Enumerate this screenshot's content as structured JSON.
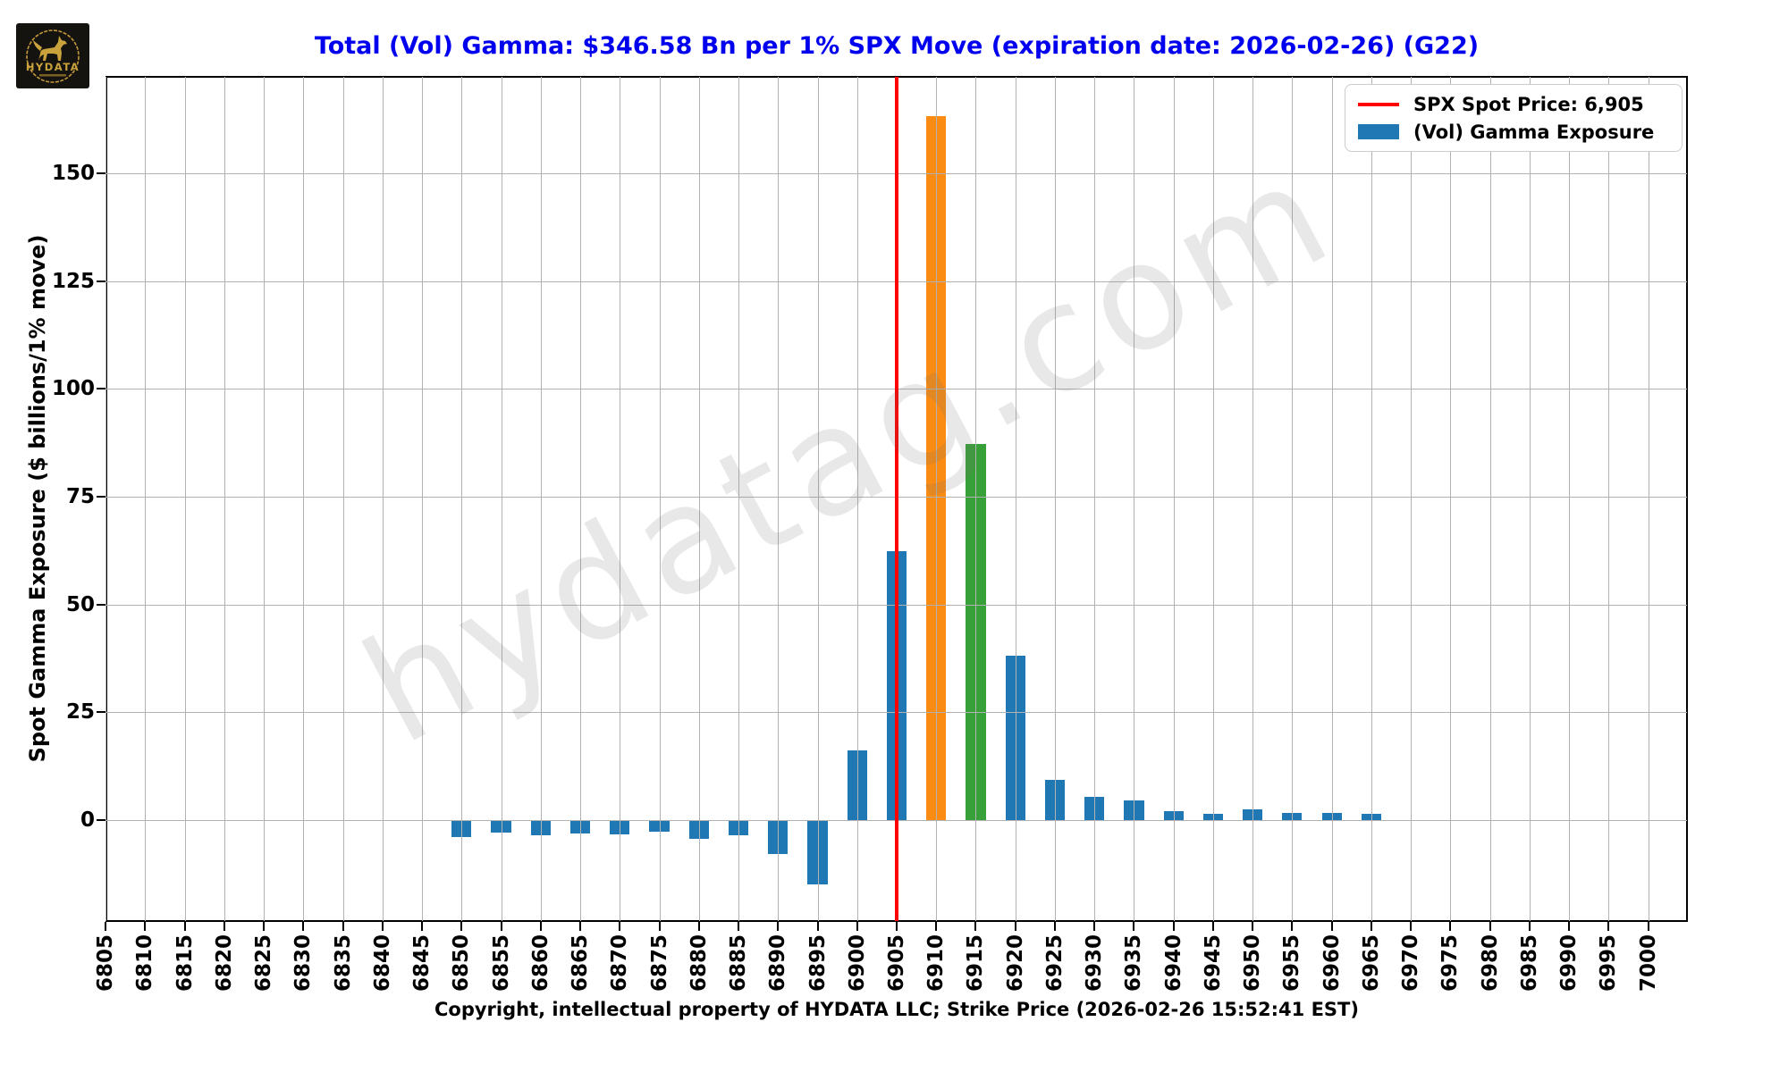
{
  "logo": {
    "brand": "HYDATA"
  },
  "title": "Total (Vol) Gamma: $346.58 Bn per 1% SPX Move (expiration date: 2026-02-26) (G22)",
  "legend": {
    "spot_label": "SPX Spot Price: 6,905",
    "exposure_label": "(Vol) Gamma Exposure"
  },
  "watermark": "hydatag.com",
  "footer": "Copyright, intellectual property of HYDATA LLC; Strike Price (2026-02-26 15:52:41 EST)",
  "chart_data": {
    "type": "bar",
    "title": "Total (Vol) Gamma: $346.58 Bn per 1% SPX Move (expiration date: 2026-02-26) (G22)",
    "ylabel": "Spot Gamma Exposure ($ billions/1% move)",
    "xlabel": "",
    "grid": true,
    "legend_position": "upper right",
    "spot_price": 6905,
    "xlim": [
      6805.1,
      7004.9
    ],
    "ylim": [
      -23.4,
      172.4
    ],
    "y_ticks": [
      0,
      25,
      50,
      75,
      100,
      125,
      150
    ],
    "x_ticks": [
      6805,
      6810,
      6815,
      6820,
      6825,
      6830,
      6835,
      6840,
      6845,
      6850,
      6855,
      6860,
      6865,
      6870,
      6875,
      6880,
      6885,
      6890,
      6895,
      6900,
      6905,
      6910,
      6915,
      6920,
      6925,
      6930,
      6935,
      6940,
      6945,
      6950,
      6955,
      6960,
      6965,
      6970,
      6975,
      6980,
      6985,
      6990,
      6995,
      7000
    ],
    "bar_width_strikes": 2.5,
    "colors": {
      "default": "#1f77b4",
      "spot_line": "#ff0000",
      "highlights": {
        "6910": "#fa8c14",
        "6915": "#38a038"
      }
    },
    "bars": [
      {
        "strike": 6850,
        "value": -4.0
      },
      {
        "strike": 6855,
        "value": -2.8
      },
      {
        "strike": 6860,
        "value": -3.5
      },
      {
        "strike": 6865,
        "value": -3.1
      },
      {
        "strike": 6870,
        "value": -3.3
      },
      {
        "strike": 6875,
        "value": -2.6
      },
      {
        "strike": 6880,
        "value": -4.3
      },
      {
        "strike": 6885,
        "value": -3.5
      },
      {
        "strike": 6890,
        "value": -7.9
      },
      {
        "strike": 6895,
        "value": -14.9
      },
      {
        "strike": 6900,
        "value": 16.2
      },
      {
        "strike": 6905,
        "value": 62.4
      },
      {
        "strike": 6910,
        "value": 163.3
      },
      {
        "strike": 6915,
        "value": 87.2
      },
      {
        "strike": 6920,
        "value": 38.1
      },
      {
        "strike": 6925,
        "value": 9.3
      },
      {
        "strike": 6930,
        "value": 5.4
      },
      {
        "strike": 6935,
        "value": 4.6
      },
      {
        "strike": 6940,
        "value": 2.1
      },
      {
        "strike": 6945,
        "value": 1.5
      },
      {
        "strike": 6950,
        "value": 2.5
      },
      {
        "strike": 6955,
        "value": 1.6
      },
      {
        "strike": 6960,
        "value": 1.7
      },
      {
        "strike": 6965,
        "value": 1.5
      }
    ]
  }
}
